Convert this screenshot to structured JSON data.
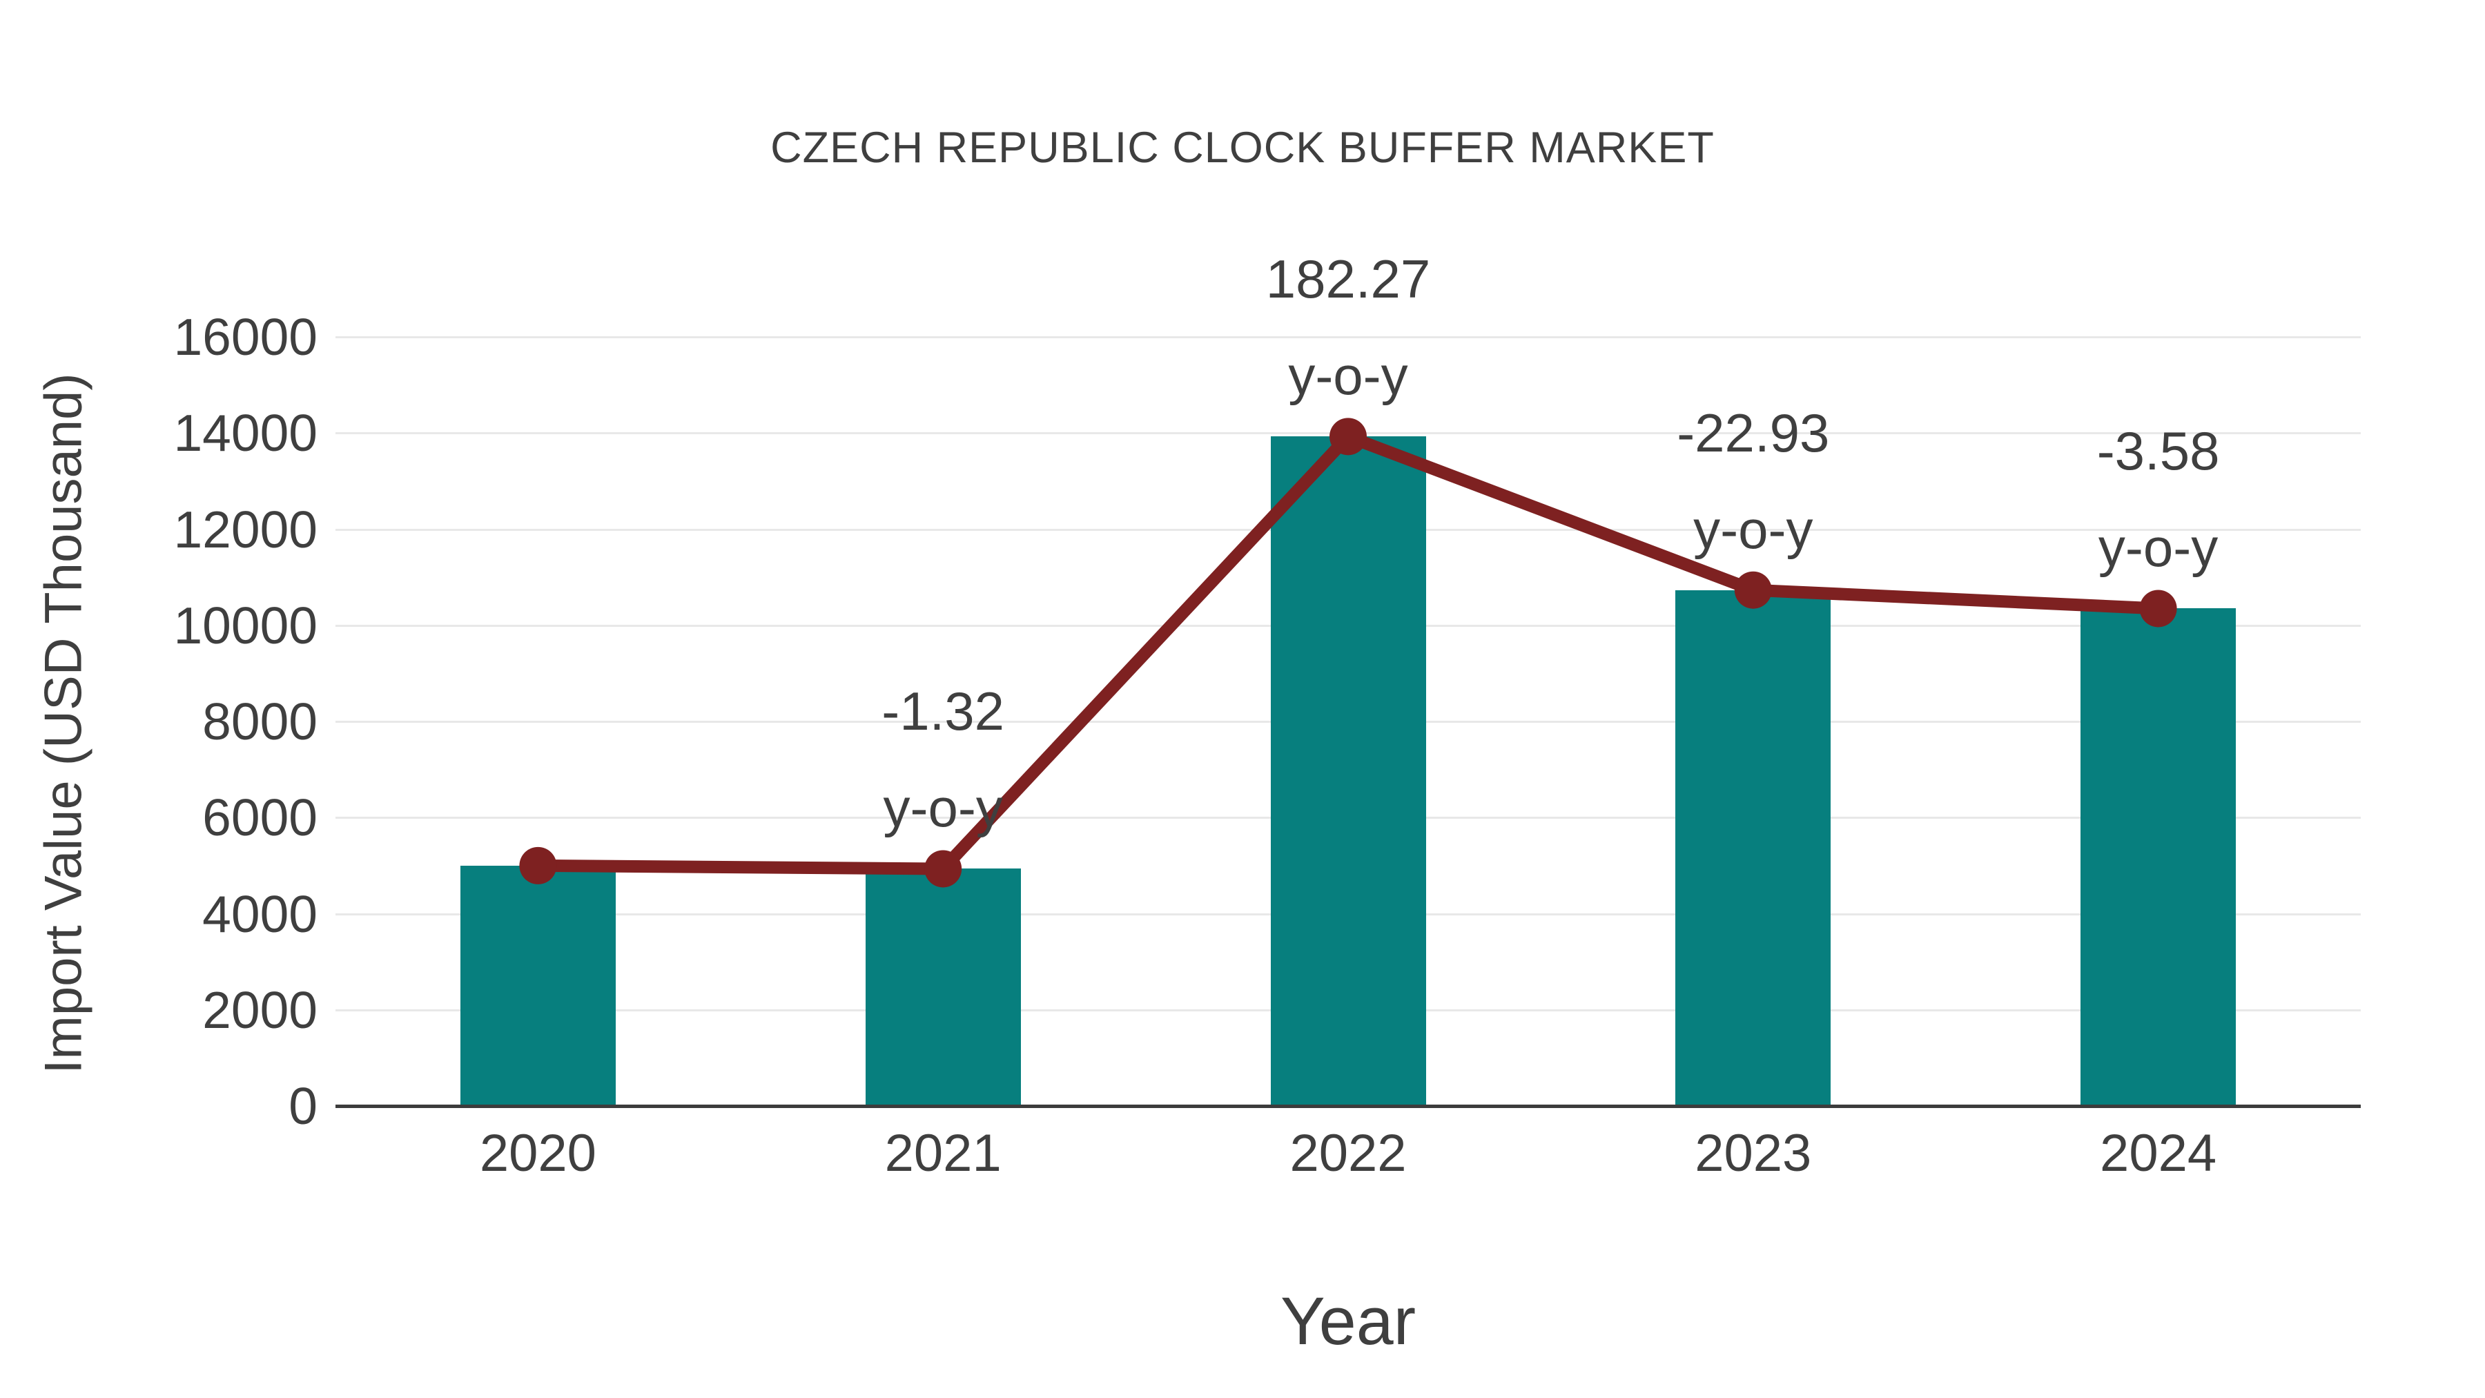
{
  "title": "CZECH REPUBLIC CLOCK BUFFER MARKET",
  "colors": {
    "bar": "#077f7e",
    "line": "#7e2121",
    "grid": "#e8e8e8",
    "axis": "#3c3c3c",
    "text": "#3f3f3f"
  },
  "chart_data": {
    "type": "bar",
    "title": "CZECH REPUBLIC CLOCK BUFFER MARKET",
    "xlabel": "Year",
    "ylabel": "Import Value (USD Thousand)",
    "categories": [
      "2020",
      "2021",
      "2022",
      "2023",
      "2024"
    ],
    "series": [
      {
        "name": "Import Value (USD Thousand)",
        "type": "bar",
        "color": "#077f7e",
        "values": [
          5000,
          4934,
          13927,
          10733,
          10349
        ]
      },
      {
        "name": "y-o-y",
        "type": "line",
        "color": "#7e2121",
        "values": [
          5000,
          4934,
          13927,
          10733,
          10349
        ]
      }
    ],
    "annotations": [
      {
        "category": "2021",
        "value_label": "-1.32",
        "suffix_label": "y-o-y",
        "growth_pct": -1.32
      },
      {
        "category": "2022",
        "value_label": "182.27",
        "suffix_label": "y-o-y",
        "growth_pct": 182.27
      },
      {
        "category": "2023",
        "value_label": "-22.93",
        "suffix_label": "y-o-y",
        "growth_pct": -22.93
      },
      {
        "category": "2024",
        "value_label": "-3.58",
        "suffix_label": "y-o-y",
        "growth_pct": -3.58
      }
    ],
    "yticks": [
      0,
      2000,
      4000,
      6000,
      8000,
      10000,
      12000,
      14000,
      16000
    ],
    "ylim": [
      0,
      16000
    ],
    "grid": true,
    "legend_position": "none"
  }
}
